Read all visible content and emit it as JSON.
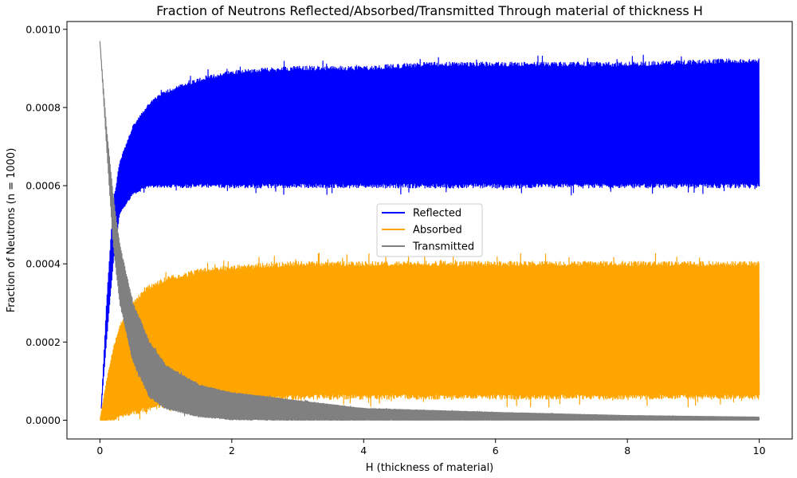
{
  "chart_data": {
    "type": "line",
    "title": "Fraction of Neutrons Reflected/Absorbed/Transmitted Through material of thickness H",
    "xlabel": "H (thickness of material)",
    "ylabel": "Fraction of Neutrons (n = 1000)",
    "xlim": [
      -0.5,
      10.5
    ],
    "ylim": [
      -4.8e-05,
      0.00102
    ],
    "xticks": [
      0,
      2,
      4,
      6,
      8,
      10
    ],
    "xtick_labels": [
      "0",
      "2",
      "4",
      "6",
      "8",
      "10"
    ],
    "yticks": [
      0.0,
      0.0002,
      0.0004,
      0.0006,
      0.0008,
      0.001
    ],
    "ytick_labels": [
      "0.0000",
      "0.0002",
      "0.0004",
      "0.0006",
      "0.0008",
      "0.0010"
    ],
    "grid": false,
    "legend": {
      "position": "center"
    },
    "series": [
      {
        "name": "Reflected",
        "color": "#0000ff",
        "envelope_x": [
          0.02,
          0.1,
          0.2,
          0.3,
          0.5,
          0.75,
          1.0,
          1.5,
          2.0,
          3.0,
          4.0,
          5.0,
          6.0,
          8.0,
          10.0
        ],
        "envelope_upper": [
          3e-05,
          0.0003,
          0.00055,
          0.00066,
          0.00075,
          0.00081,
          0.00084,
          0.00087,
          0.00089,
          0.0009,
          0.0009,
          0.00091,
          0.00091,
          0.00091,
          0.00092
        ],
        "envelope_lower": [
          3e-05,
          0.0002,
          0.0004,
          0.00053,
          0.00058,
          0.0006,
          0.0006,
          0.0006,
          0.0006,
          0.0006,
          0.0006,
          0.0006,
          0.0006,
          0.0006,
          0.0006
        ]
      },
      {
        "name": "Absorbed",
        "color": "#ffa500",
        "envelope_x": [
          0.0,
          0.1,
          0.2,
          0.3,
          0.5,
          0.75,
          1.0,
          1.5,
          2.0,
          3.0,
          4.0,
          5.0,
          6.0,
          8.0,
          10.0
        ],
        "envelope_upper": [
          0.0,
          0.0001,
          0.00018,
          0.00024,
          0.0003,
          0.00034,
          0.00036,
          0.00038,
          0.00039,
          0.0004,
          0.0004,
          0.0004,
          0.0004,
          0.0004,
          0.0004
        ],
        "envelope_lower": [
          0.0,
          0.0,
          0.0,
          1e-05,
          2e-05,
          3e-05,
          4e-05,
          5e-05,
          5e-05,
          6e-05,
          6e-05,
          6e-05,
          6e-05,
          6e-05,
          6e-05
        ]
      },
      {
        "name": "Transmitted",
        "color": "#808080",
        "envelope_x": [
          0.0,
          0.1,
          0.2,
          0.3,
          0.5,
          0.75,
          1.0,
          1.5,
          2.0,
          3.0,
          4.0,
          5.0,
          6.0,
          8.0,
          10.0
        ],
        "envelope_upper": [
          0.00097,
          0.00075,
          0.00058,
          0.00045,
          0.0003,
          0.0002,
          0.00014,
          9e-05,
          7e-05,
          5e-05,
          3e-05,
          2.5e-05,
          2e-05,
          1.2e-05,
          8e-06
        ],
        "envelope_lower": [
          0.00097,
          0.0007,
          0.00045,
          0.0003,
          0.00015,
          6e-05,
          3e-05,
          1e-05,
          2e-06,
          0.0,
          0.0,
          0.0,
          0.0,
          0.0,
          0.0
        ]
      }
    ]
  }
}
